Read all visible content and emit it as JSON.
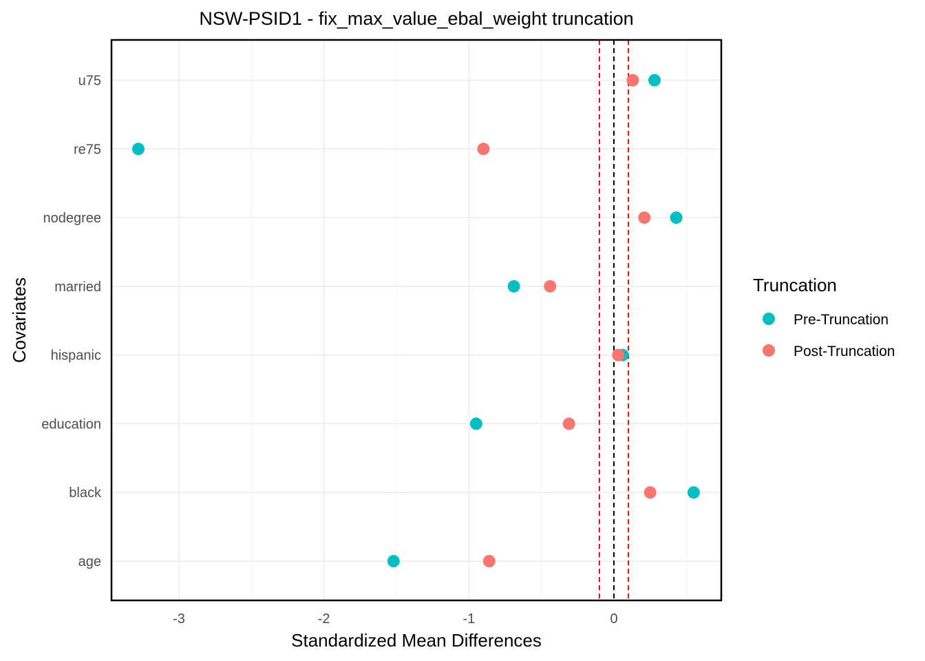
{
  "chart_data": {
    "type": "scatter",
    "title": "NSW-PSID1 - fix_max_value_ebal_weight truncation",
    "xlabel": "Standardized Mean Differences",
    "ylabel": "Covariates",
    "categories": [
      "age",
      "black",
      "education",
      "hispanic",
      "married",
      "nodegree",
      "re75",
      "u75"
    ],
    "x_ticks": [
      -3,
      -2,
      -1,
      0
    ],
    "x_tick_labels": [
      "-3",
      "-2",
      "-1",
      "0"
    ],
    "xlim": [
      -3.46,
      0.74
    ],
    "reference_lines": [
      {
        "x": 0,
        "style": "dashed",
        "color": "#000000"
      },
      {
        "x": -0.1,
        "style": "dashed",
        "color": "#ff0000"
      },
      {
        "x": 0.1,
        "style": "dashed",
        "color": "#ff0000"
      }
    ],
    "legend": {
      "title": "Truncation",
      "position": "right"
    },
    "grid": true,
    "series": [
      {
        "name": "Pre-Truncation",
        "color": "#00BFC4",
        "values": [
          -1.52,
          0.55,
          -0.95,
          0.06,
          -0.69,
          0.43,
          -3.28,
          0.28
        ]
      },
      {
        "name": "Post-Truncation",
        "color": "#F8766D",
        "values": [
          -0.86,
          0.25,
          -0.31,
          0.03,
          -0.44,
          0.21,
          -0.9,
          0.13
        ]
      }
    ]
  }
}
